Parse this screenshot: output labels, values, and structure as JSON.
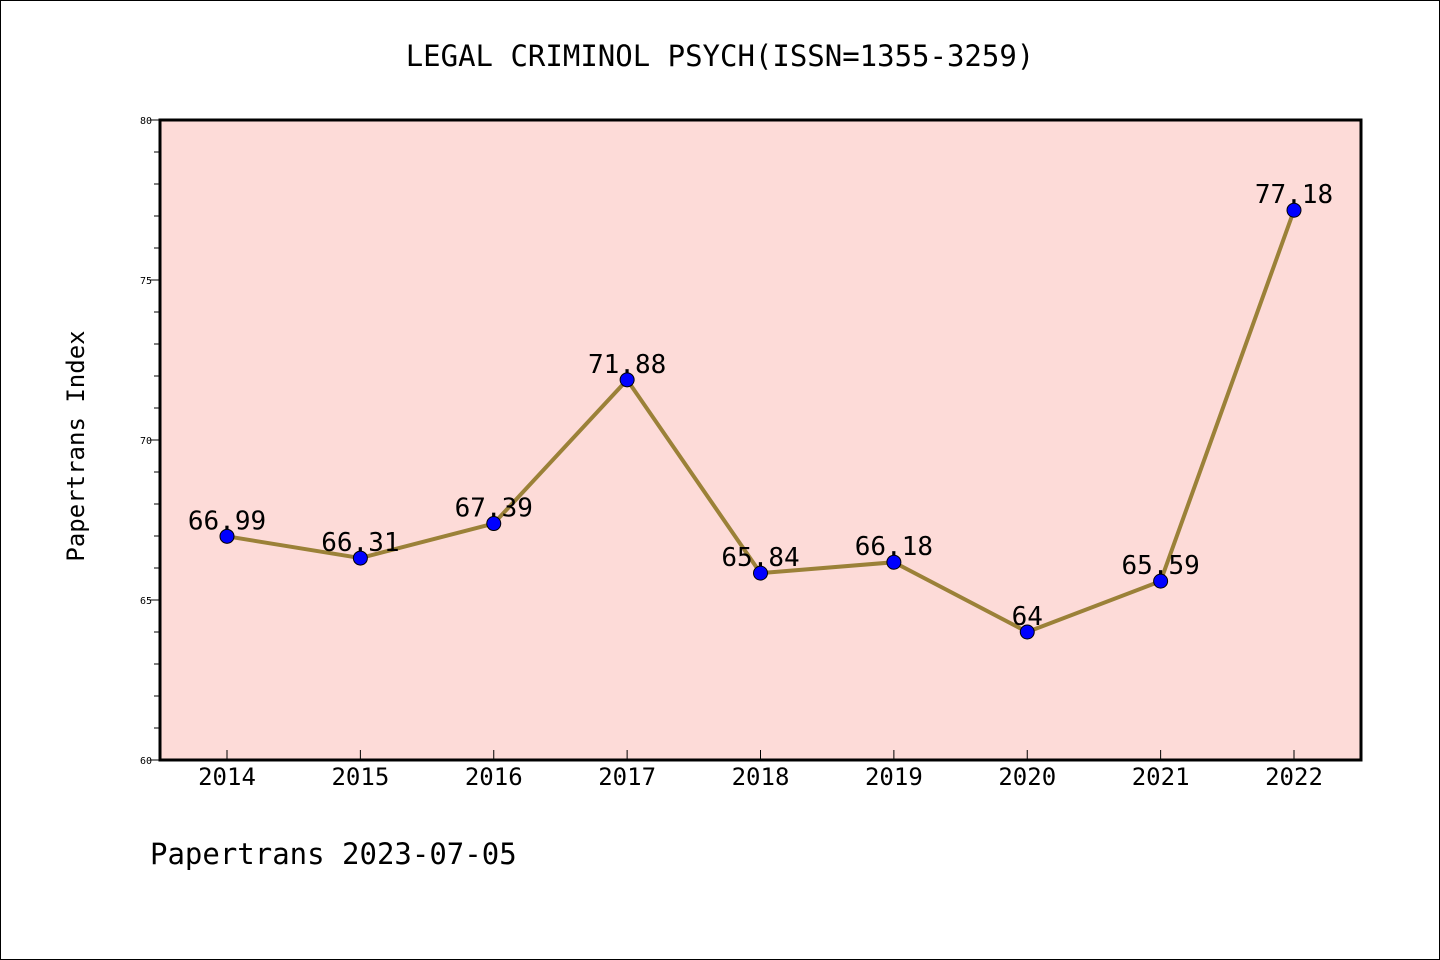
{
  "chart_data": {
    "type": "line",
    "title": "LEGAL CRIMINOL PSYCH(ISSN=1355-3259)",
    "ylabel": "Papertrans Index",
    "xlabel": "",
    "categories": [
      "2014",
      "2015",
      "2016",
      "2017",
      "2018",
      "2019",
      "2020",
      "2021",
      "2022"
    ],
    "values": [
      66.99,
      66.31,
      67.39,
      71.88,
      65.84,
      66.18,
      64,
      65.59,
      77.18
    ],
    "data_labels": [
      "66.99",
      "66.31",
      "67.39",
      "71.88",
      "65.84",
      "66.18",
      "64",
      "65.59",
      "77.18"
    ],
    "ylim": [
      60,
      80
    ],
    "yticks": [
      60,
      65,
      70,
      75,
      80
    ],
    "ytick_labels": [
      "60",
      "65",
      "70",
      "75",
      "80"
    ],
    "grid": false,
    "plot_background": "#fddbd8",
    "line_color": "#9b8138",
    "marker_color": "#0000ff"
  },
  "footer": {
    "text": "Papertrans 2023-07-05"
  }
}
